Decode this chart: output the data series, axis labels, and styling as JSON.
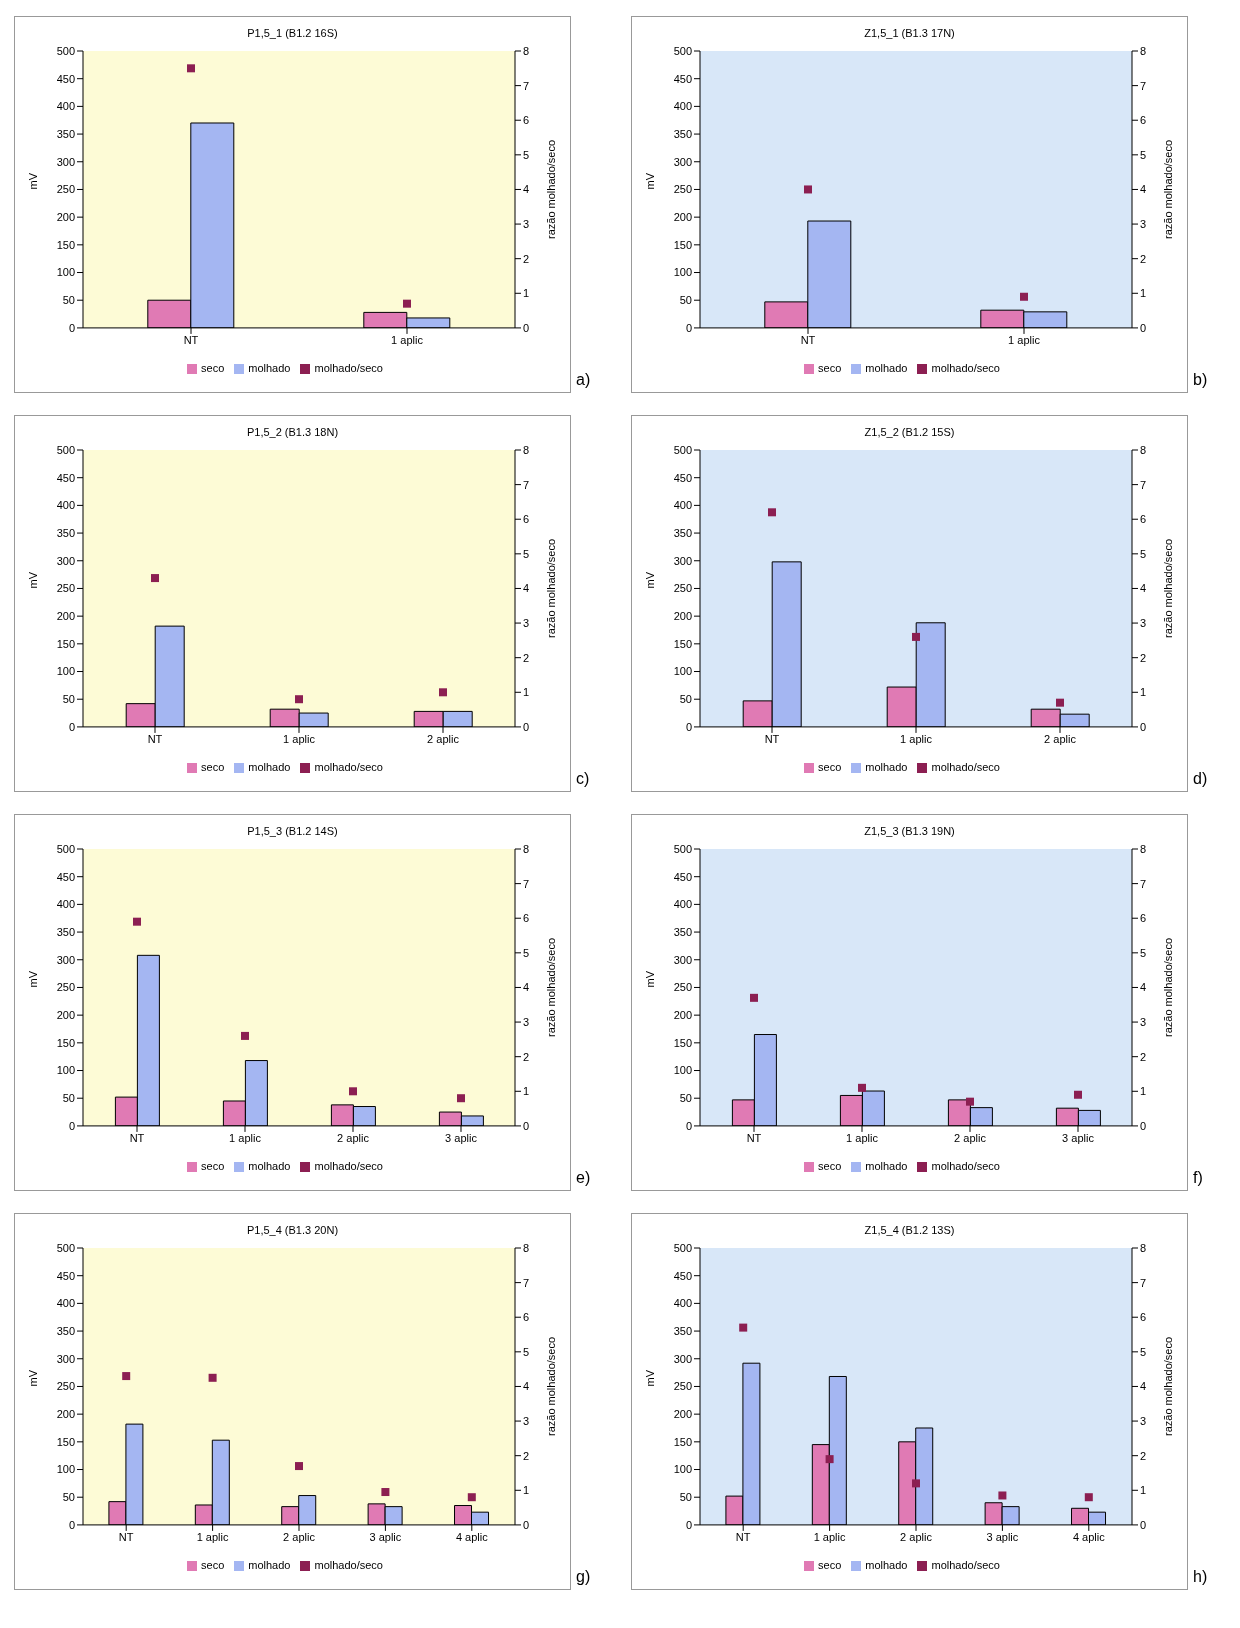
{
  "chart_data": [
    {
      "type": "bar",
      "title": "P1,5_1 (B1.2 16S)",
      "annotations": [
        "a)"
      ],
      "ylabel": "mV",
      "y2label": "razão molhado/seco",
      "categories": [
        "NT",
        "1 aplic"
      ],
      "series": [
        {
          "name": "seco",
          "color": "#e07ab4",
          "values": [
            50,
            28
          ]
        },
        {
          "name": "molhado",
          "color": "#a4b6f2",
          "values": [
            370,
            18
          ]
        },
        {
          "name": "molhado/seco",
          "color": "#8c1f52",
          "type": "scatter",
          "axis": "y2",
          "values": [
            7.5,
            0.7
          ]
        }
      ],
      "ylim": [
        0,
        500
      ],
      "yticks": [
        0,
        50,
        100,
        150,
        200,
        250,
        300,
        350,
        400,
        450,
        500
      ],
      "y2lim": [
        0,
        8
      ],
      "y2ticks": [
        0,
        1,
        2,
        3,
        4,
        5,
        6,
        7,
        8
      ],
      "legend": "bottom",
      "marker": "square",
      "grid": false
    },
    {
      "type": "bar",
      "title": "Z1,5_1 (B1.3 17N)",
      "annotations": [
        "b)"
      ],
      "ylabel": "mV",
      "y2label": "razão molhado/seco",
      "categories": [
        "NT",
        "1 aplic"
      ],
      "series": [
        {
          "name": "seco",
          "color": "#e07ab4",
          "values": [
            47,
            32
          ]
        },
        {
          "name": "molhado",
          "color": "#a4b6f2",
          "values": [
            193,
            29
          ]
        },
        {
          "name": "molhado/seco",
          "color": "#8c1f52",
          "type": "scatter",
          "axis": "y2",
          "values": [
            4.0,
            0.9
          ]
        }
      ],
      "ylim": [
        0,
        500
      ],
      "yticks": [
        0,
        50,
        100,
        150,
        200,
        250,
        300,
        350,
        400,
        450,
        500
      ],
      "y2lim": [
        0,
        8
      ],
      "y2ticks": [
        0,
        1,
        2,
        3,
        4,
        5,
        6,
        7,
        8
      ],
      "legend": "bottom",
      "marker": "square",
      "grid": false
    },
    {
      "type": "bar",
      "title": "P1,5_2 (B1.3 18N)",
      "annotations": [
        "c)"
      ],
      "ylabel": "mV",
      "y2label": "razão molhado/seco",
      "categories": [
        "NT",
        "1 aplic",
        "2 aplic"
      ],
      "series": [
        {
          "name": "seco",
          "color": "#e07ab4",
          "values": [
            42,
            32,
            28
          ]
        },
        {
          "name": "molhado",
          "color": "#a4b6f2",
          "values": [
            182,
            25,
            28
          ]
        },
        {
          "name": "molhado/seco",
          "color": "#8c1f52",
          "type": "scatter",
          "axis": "y2",
          "values": [
            4.3,
            0.8,
            1.0
          ]
        }
      ],
      "ylim": [
        0,
        500
      ],
      "yticks": [
        0,
        50,
        100,
        150,
        200,
        250,
        300,
        350,
        400,
        450,
        500
      ],
      "y2lim": [
        0,
        8
      ],
      "y2ticks": [
        0,
        1,
        2,
        3,
        4,
        5,
        6,
        7,
        8
      ],
      "legend": "bottom",
      "marker": "square",
      "grid": false
    },
    {
      "type": "bar",
      "title": "Z1,5_2 (B1.2 15S)",
      "annotations": [
        "d)"
      ],
      "ylabel": "mV",
      "y2label": "razão molhado/seco",
      "categories": [
        "NT",
        "1 aplic",
        "2 aplic"
      ],
      "series": [
        {
          "name": "seco",
          "color": "#e07ab4",
          "values": [
            47,
            72,
            32
          ]
        },
        {
          "name": "molhado",
          "color": "#a4b6f2",
          "values": [
            298,
            188,
            23
          ]
        },
        {
          "name": "molhado/seco",
          "color": "#8c1f52",
          "type": "scatter",
          "axis": "y2",
          "values": [
            6.2,
            2.6,
            0.7
          ]
        }
      ],
      "ylim": [
        0,
        500
      ],
      "yticks": [
        0,
        50,
        100,
        150,
        200,
        250,
        300,
        350,
        400,
        450,
        500
      ],
      "y2lim": [
        0,
        8
      ],
      "y2ticks": [
        0,
        1,
        2,
        3,
        4,
        5,
        6,
        7,
        8
      ],
      "legend": "bottom",
      "marker": "square",
      "grid": false
    },
    {
      "type": "bar",
      "title": "P1,5_3 (B1.2 14S)",
      "annotations": [
        "e)"
      ],
      "ylabel": "mV",
      "y2label": "razão molhado/seco",
      "categories": [
        "NT",
        "1 aplic",
        "2 aplic",
        "3 aplic"
      ],
      "series": [
        {
          "name": "seco",
          "color": "#e07ab4",
          "values": [
            52,
            45,
            38,
            25
          ]
        },
        {
          "name": "molhado",
          "color": "#a4b6f2",
          "values": [
            308,
            118,
            35,
            18
          ]
        },
        {
          "name": "molhado/seco",
          "color": "#8c1f52",
          "type": "scatter",
          "axis": "y2",
          "values": [
            5.9,
            2.6,
            1.0,
            0.8
          ]
        }
      ],
      "ylim": [
        0,
        500
      ],
      "yticks": [
        0,
        50,
        100,
        150,
        200,
        250,
        300,
        350,
        400,
        450,
        500
      ],
      "y2lim": [
        0,
        8
      ],
      "y2ticks": [
        0,
        1,
        2,
        3,
        4,
        5,
        6,
        7,
        8
      ],
      "legend": "bottom",
      "marker": "square",
      "grid": false
    },
    {
      "type": "bar",
      "title": "Z1,5_3 (B1.3 19N)",
      "annotations": [
        "f)"
      ],
      "ylabel": "mV",
      "y2label": "razão molhado/seco",
      "categories": [
        "NT",
        "1 aplic",
        "2 aplic",
        "3 aplic"
      ],
      "series": [
        {
          "name": "seco",
          "color": "#e07ab4",
          "values": [
            47,
            55,
            47,
            32
          ]
        },
        {
          "name": "molhado",
          "color": "#a4b6f2",
          "values": [
            165,
            63,
            33,
            28
          ]
        },
        {
          "name": "molhado/seco",
          "color": "#8c1f52",
          "type": "scatter",
          "axis": "y2",
          "values": [
            3.7,
            1.1,
            0.7,
            0.9
          ]
        }
      ],
      "ylim": [
        0,
        500
      ],
      "yticks": [
        0,
        50,
        100,
        150,
        200,
        250,
        300,
        350,
        400,
        450,
        500
      ],
      "y2lim": [
        0,
        8
      ],
      "y2ticks": [
        0,
        1,
        2,
        3,
        4,
        5,
        6,
        7,
        8
      ],
      "legend": "bottom",
      "marker": "square",
      "grid": false
    },
    {
      "type": "bar",
      "title": "P1,5_4 (B1.3 20N)",
      "annotations": [
        "g)"
      ],
      "ylabel": "mV",
      "y2label": "razão molhado/seco",
      "categories": [
        "NT",
        "1 aplic",
        "2 aplic",
        "3 aplic",
        "4 aplic"
      ],
      "series": [
        {
          "name": "seco",
          "color": "#e07ab4",
          "values": [
            42,
            36,
            33,
            38,
            35
          ]
        },
        {
          "name": "molhado",
          "color": "#a4b6f2",
          "values": [
            182,
            153,
            53,
            33,
            23
          ]
        },
        {
          "name": "molhado/seco",
          "color": "#8c1f52",
          "type": "scatter",
          "axis": "y2",
          "values": [
            4.3,
            4.25,
            1.7,
            0.95,
            0.8
          ]
        }
      ],
      "ylim": [
        0,
        500
      ],
      "yticks": [
        0,
        50,
        100,
        150,
        200,
        250,
        300,
        350,
        400,
        450,
        500
      ],
      "y2lim": [
        0,
        8
      ],
      "y2ticks": [
        0,
        1,
        2,
        3,
        4,
        5,
        6,
        7,
        8
      ],
      "legend": "bottom",
      "marker": "square",
      "grid": false
    },
    {
      "type": "bar",
      "title": "Z1,5_4 (B1.2 13S)",
      "annotations": [
        "h)"
      ],
      "ylabel": "mV",
      "y2label": "razão molhado/seco",
      "categories": [
        "NT",
        "1 aplic",
        "2 aplic",
        "3 aplic",
        "4 aplic"
      ],
      "series": [
        {
          "name": "seco",
          "color": "#e07ab4",
          "values": [
            52,
            145,
            150,
            40,
            30
          ]
        },
        {
          "name": "molhado",
          "color": "#a4b6f2",
          "values": [
            292,
            268,
            175,
            33,
            23
          ]
        },
        {
          "name": "molhado/seco",
          "color": "#8c1f52",
          "type": "scatter",
          "axis": "y2",
          "values": [
            5.7,
            1.9,
            1.2,
            0.85,
            0.8
          ]
        }
      ],
      "ylim": [
        0,
        500
      ],
      "yticks": [
        0,
        50,
        100,
        150,
        200,
        250,
        300,
        350,
        400,
        450,
        500
      ],
      "y2lim": [
        0,
        8
      ],
      "y2ticks": [
        0,
        1,
        2,
        3,
        4,
        5,
        6,
        7,
        8
      ],
      "legend": "bottom",
      "marker": "square",
      "grid": false
    }
  ]
}
